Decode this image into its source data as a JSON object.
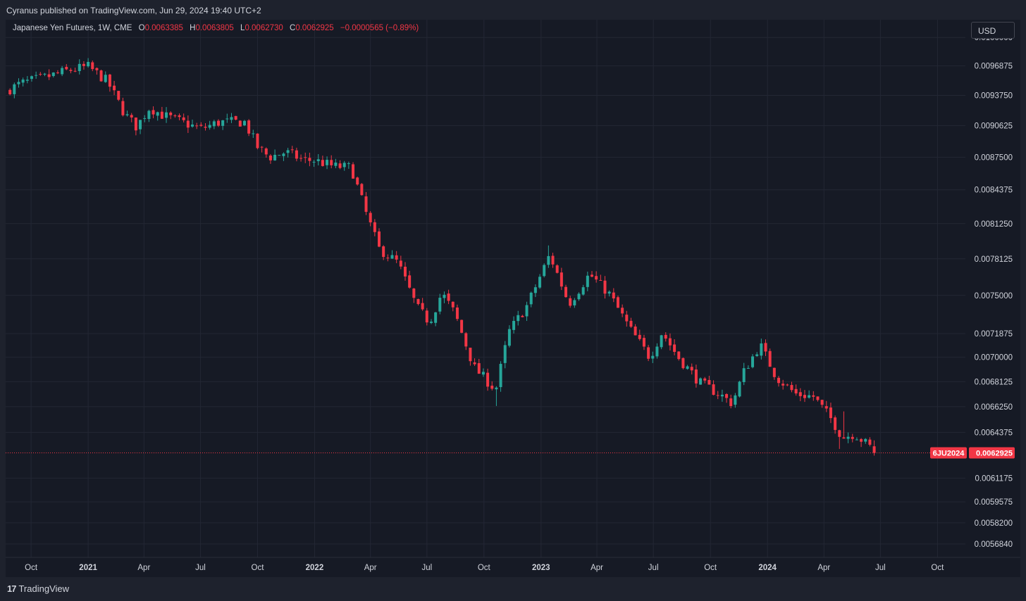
{
  "header": {
    "published": "Cyranus published on TradingView.com, Jun 29, 2024 19:40 UTC+2"
  },
  "legend": {
    "symbol": "Japanese Yen Futures, 1W, CME",
    "open_key": "O",
    "open": "0.0063385",
    "high_key": "H",
    "high": "0.0063805",
    "low_key": "L",
    "low": "0.0062730",
    "close_key": "C",
    "close": "0.0062925",
    "change": "−0.0000565 (−0.89%)"
  },
  "currency_button": "USD",
  "price_tag": {
    "ticker": "6JU2024",
    "price": "0.0062925"
  },
  "footer": {
    "logo_mark": "17",
    "logo_text": "TradingView"
  },
  "colors": {
    "up": "#26a69a",
    "down": "#f23645",
    "background": "#161a25",
    "grid": "#232734",
    "axis_text": "#d1d4dc"
  },
  "chart_data": {
    "type": "candlestick",
    "title": "Japanese Yen Futures, 1W, CME",
    "y_scale": "log",
    "ylim": [
      0.0056,
      0.0102
    ],
    "xlim": [
      "2020-08-21",
      "2024-11-15"
    ],
    "y_ticks": [
      "0.0100000",
      "0.0096875",
      "0.0093750",
      "0.0090625",
      "0.0087500",
      "0.0084375",
      "0.0081250",
      "0.0078125",
      "0.0075000",
      "0.0071875",
      "0.0070000",
      "0.0068125",
      "0.0066250",
      "0.0064375",
      "0.0061175",
      "0.0059575",
      "0.0058200",
      "0.0056840"
    ],
    "x_ticks": [
      {
        "label": "Oct",
        "date": "2020-10-01",
        "bold": false
      },
      {
        "label": "2021",
        "date": "2021-01-01",
        "bold": true
      },
      {
        "label": "Apr",
        "date": "2021-04-01",
        "bold": false
      },
      {
        "label": "Jul",
        "date": "2021-07-01",
        "bold": false
      },
      {
        "label": "Oct",
        "date": "2021-10-01",
        "bold": false
      },
      {
        "label": "2022",
        "date": "2022-01-01",
        "bold": true
      },
      {
        "label": "Apr",
        "date": "2022-04-01",
        "bold": false
      },
      {
        "label": "Jul",
        "date": "2022-07-01",
        "bold": false
      },
      {
        "label": "Oct",
        "date": "2022-10-01",
        "bold": false
      },
      {
        "label": "2023",
        "date": "2023-01-01",
        "bold": true
      },
      {
        "label": "Apr",
        "date": "2023-04-01",
        "bold": false
      },
      {
        "label": "Jul",
        "date": "2023-07-01",
        "bold": false
      },
      {
        "label": "Oct",
        "date": "2023-10-01",
        "bold": false
      },
      {
        "label": "2024",
        "date": "2024-01-01",
        "bold": true
      },
      {
        "label": "Apr",
        "date": "2024-04-01",
        "bold": false
      },
      {
        "label": "Jul",
        "date": "2024-07-01",
        "bold": false
      },
      {
        "label": "Oct",
        "date": "2024-10-01",
        "bold": false
      }
    ],
    "last_price": 0.0062925,
    "close_path": [
      {
        "date": "2020-08-21",
        "close": 0.00942
      },
      {
        "date": "2020-09-15",
        "close": 0.0095
      },
      {
        "date": "2020-11-01",
        "close": 0.00958
      },
      {
        "date": "2020-12-01",
        "close": 0.00964
      },
      {
        "date": "2021-01-01",
        "close": 0.00968
      },
      {
        "date": "2021-02-01",
        "close": 0.00952
      },
      {
        "date": "2021-03-01",
        "close": 0.00918
      },
      {
        "date": "2021-03-20",
        "close": 0.00905
      },
      {
        "date": "2021-04-10",
        "close": 0.00925
      },
      {
        "date": "2021-05-01",
        "close": 0.00917
      },
      {
        "date": "2021-06-01",
        "close": 0.0091
      },
      {
        "date": "2021-07-01",
        "close": 0.00903
      },
      {
        "date": "2021-08-01",
        "close": 0.0091
      },
      {
        "date": "2021-09-10",
        "close": 0.0091
      },
      {
        "date": "2021-10-01",
        "close": 0.00885
      },
      {
        "date": "2021-10-20",
        "close": 0.00875
      },
      {
        "date": "2021-11-15",
        "close": 0.0088
      },
      {
        "date": "2021-12-15",
        "close": 0.00872
      },
      {
        "date": "2022-01-01",
        "close": 0.00872
      },
      {
        "date": "2022-02-01",
        "close": 0.00866
      },
      {
        "date": "2022-03-01",
        "close": 0.00865
      },
      {
        "date": "2022-03-25",
        "close": 0.00822
      },
      {
        "date": "2022-04-15",
        "close": 0.0079
      },
      {
        "date": "2022-05-15",
        "close": 0.00778
      },
      {
        "date": "2022-06-15",
        "close": 0.0074
      },
      {
        "date": "2022-07-05",
        "close": 0.00728
      },
      {
        "date": "2022-07-25",
        "close": 0.00752
      },
      {
        "date": "2022-08-15",
        "close": 0.00735
      },
      {
        "date": "2022-09-15",
        "close": 0.00692
      },
      {
        "date": "2022-10-20",
        "close": 0.00675
      },
      {
        "date": "2022-11-10",
        "close": 0.0072
      },
      {
        "date": "2022-12-10",
        "close": 0.00742
      },
      {
        "date": "2023-01-15",
        "close": 0.00785
      },
      {
        "date": "2023-02-15",
        "close": 0.00743
      },
      {
        "date": "2023-03-20",
        "close": 0.00768
      },
      {
        "date": "2023-04-20",
        "close": 0.00752
      },
      {
        "date": "2023-05-25",
        "close": 0.00722
      },
      {
        "date": "2023-06-25",
        "close": 0.007
      },
      {
        "date": "2023-07-15",
        "close": 0.0072
      },
      {
        "date": "2023-08-10",
        "close": 0.007
      },
      {
        "date": "2023-09-15",
        "close": 0.0068
      },
      {
        "date": "2023-10-15",
        "close": 0.00672
      },
      {
        "date": "2023-11-05",
        "close": 0.00665
      },
      {
        "date": "2023-11-25",
        "close": 0.0069
      },
      {
        "date": "2023-12-20",
        "close": 0.0071
      },
      {
        "date": "2024-01-15",
        "close": 0.00685
      },
      {
        "date": "2024-02-15",
        "close": 0.00672
      },
      {
        "date": "2024-03-15",
        "close": 0.0067
      },
      {
        "date": "2024-04-15",
        "close": 0.00652
      },
      {
        "date": "2024-05-01",
        "close": 0.0064
      },
      {
        "date": "2024-05-20",
        "close": 0.00643
      },
      {
        "date": "2024-06-25",
        "close": 0.0062925
      }
    ],
    "spikes": [
      {
        "date": "2022-10-21",
        "low": 0.00663
      },
      {
        "date": "2023-01-13",
        "high": 0.00793
      },
      {
        "date": "2023-12-29",
        "high": 0.00712
      },
      {
        "date": "2024-04-26",
        "low": 0.00632
      },
      {
        "date": "2024-05-03",
        "high": 0.00659
      }
    ]
  }
}
